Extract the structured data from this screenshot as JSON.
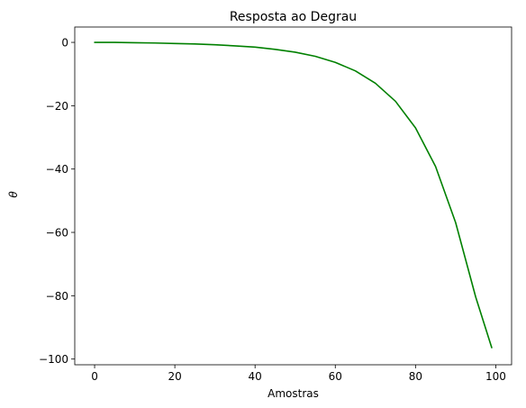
{
  "chart_data": {
    "type": "line",
    "title": "Resposta ao Degrau",
    "xlabel": "Amostras",
    "ylabel": "θ",
    "xlim": [
      -4.95,
      103.95
    ],
    "ylim": [
      -101.8,
      4.85
    ],
    "xticks": [
      0,
      20,
      40,
      60,
      80,
      100
    ],
    "yticks": [
      0,
      -20,
      -40,
      -60,
      -80,
      -100
    ],
    "xtick_labels": [
      "0",
      "20",
      "40",
      "60",
      "80",
      "100"
    ],
    "ytick_labels": [
      "0",
      "−20",
      "−40",
      "−60",
      "−80",
      "−100"
    ],
    "grid": false,
    "series": [
      {
        "color": "#008000",
        "x": [
          0,
          5,
          10,
          15,
          20,
          25,
          30,
          35,
          40,
          45,
          50,
          55,
          60,
          65,
          70,
          75,
          80,
          85,
          90,
          95,
          99
        ],
        "y": [
          0,
          0,
          -0.1,
          -0.2,
          -0.35,
          -0.5,
          -0.75,
          -1.1,
          -1.5,
          -2.2,
          -3.1,
          -4.4,
          -6.3,
          -9.0,
          -12.9,
          -18.6,
          -27.0,
          -39.2,
          -56.9,
          -80.4,
          -96.4
        ]
      }
    ]
  }
}
